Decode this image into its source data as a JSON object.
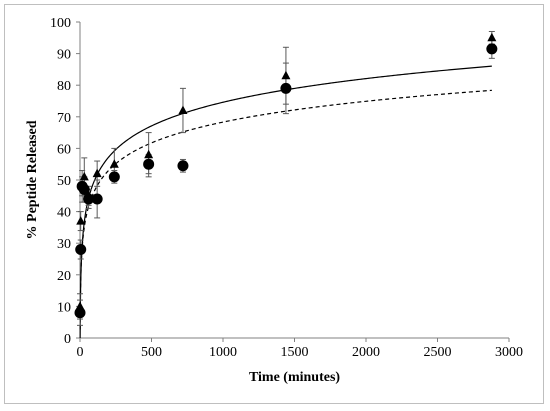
{
  "chart_data": {
    "type": "scatter",
    "title": "",
    "xlabel": "Time (minutes)",
    "ylabel": "% Peptide Released",
    "xlim": [
      0,
      3000
    ],
    "ylim": [
      0,
      100
    ],
    "xticks": [
      0,
      500,
      1000,
      1500,
      2000,
      2500,
      3000
    ],
    "yticks": [
      0,
      10,
      20,
      30,
      40,
      50,
      60,
      70,
      80,
      90,
      100
    ],
    "grid": false,
    "legend": "none",
    "colors": {
      "marker": "#000000",
      "axis": "#808080",
      "frame": "#bfbfbf",
      "errorbar": "#595959"
    },
    "series": [
      {
        "marker": "triangle",
        "x": [
          0,
          5,
          15,
          30,
          60,
          120,
          240,
          480,
          720,
          1440,
          2880
        ],
        "y": [
          10,
          37,
          48,
          51,
          45,
          52,
          55,
          58,
          72,
          83,
          95
        ],
        "err": [
          4,
          3,
          3,
          6,
          3,
          4,
          5,
          7,
          7,
          9,
          2
        ],
        "trendline": {
          "type": "log",
          "style": "solid",
          "a": 10.8,
          "b": 0.0
        }
      },
      {
        "marker": "circle",
        "x": [
          0,
          5,
          15,
          30,
          60,
          120,
          240,
          480,
          720,
          1440,
          2880
        ],
        "y": [
          8,
          28,
          48,
          47,
          44,
          44,
          51,
          55,
          54.5,
          79,
          91.5
        ],
        "err": [
          4,
          3,
          5,
          4,
          3,
          6,
          2,
          3,
          2,
          8,
          3
        ],
        "trendline": {
          "type": "log",
          "style": "dashed",
          "a": 9.5,
          "b": 2.7
        }
      }
    ]
  }
}
